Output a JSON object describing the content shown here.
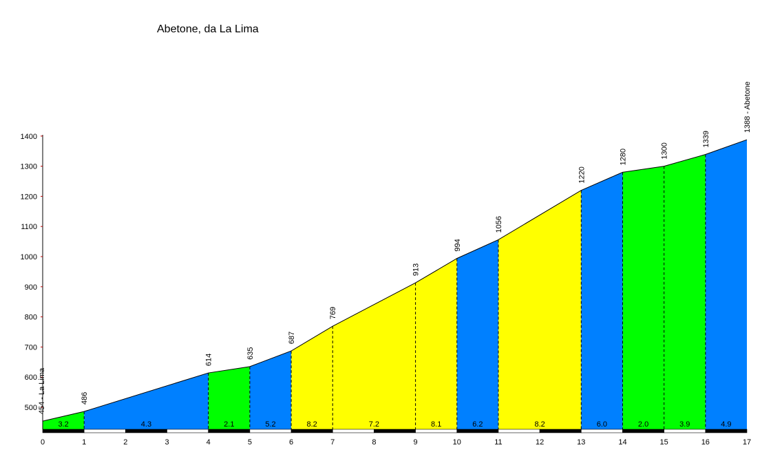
{
  "title": "Abetone, da La Lima",
  "chart_data": {
    "type": "area",
    "title": "Abetone, da La Lima",
    "xlabel": "",
    "ylabel": "",
    "xlim": [
      0,
      17
    ],
    "ylim": [
      420,
      1400
    ],
    "x_ticks": [
      "0",
      "1",
      "2",
      "3",
      "4",
      "5",
      "6",
      "7",
      "8",
      "9",
      "10",
      "11",
      "12",
      "13",
      "14",
      "15",
      "16",
      "17"
    ],
    "y_ticks": [
      "500",
      "600",
      "700",
      "800",
      "900",
      "1000",
      "1100",
      "1200",
      "1300",
      "1400"
    ],
    "grid": false,
    "points": [
      {
        "km": 0,
        "alt": 454,
        "label": "454 - La Lima"
      },
      {
        "km": 1,
        "alt": 486,
        "label": "486"
      },
      {
        "km": 4,
        "alt": 614,
        "label": "614"
      },
      {
        "km": 5,
        "alt": 635,
        "label": "635"
      },
      {
        "km": 6,
        "alt": 687,
        "label": "687"
      },
      {
        "km": 7,
        "alt": 769,
        "label": "769"
      },
      {
        "km": 9,
        "alt": 913,
        "label": "913"
      },
      {
        "km": 10,
        "alt": 994,
        "label": "994"
      },
      {
        "km": 11,
        "alt": 1056,
        "label": "1056"
      },
      {
        "km": 13,
        "alt": 1220,
        "label": "1220"
      },
      {
        "km": 14,
        "alt": 1280,
        "label": "1280"
      },
      {
        "km": 15,
        "alt": 1300,
        "label": "1300"
      },
      {
        "km": 16,
        "alt": 1339,
        "label": "1339"
      },
      {
        "km": 17,
        "alt": 1388,
        "label": "1388 - Abetone"
      }
    ],
    "segments": [
      {
        "from": 0,
        "to": 1,
        "gradient": "3.2",
        "color": "#00ff00"
      },
      {
        "from": 1,
        "to": 4,
        "gradient": "4.3",
        "color": "#0080ff"
      },
      {
        "from": 4,
        "to": 5,
        "gradient": "2.1",
        "color": "#00ff00"
      },
      {
        "from": 5,
        "to": 6,
        "gradient": "5.2",
        "color": "#0080ff"
      },
      {
        "from": 6,
        "to": 7,
        "gradient": "8.2",
        "color": "#ffff00"
      },
      {
        "from": 7,
        "to": 9,
        "gradient": "7.2",
        "color": "#ffff00"
      },
      {
        "from": 9,
        "to": 10,
        "gradient": "8.1",
        "color": "#ffff00"
      },
      {
        "from": 10,
        "to": 11,
        "gradient": "6.2",
        "color": "#0080ff"
      },
      {
        "from": 11,
        "to": 13,
        "gradient": "8.2",
        "color": "#ffff00"
      },
      {
        "from": 13,
        "to": 14,
        "gradient": "6.0",
        "color": "#0080ff"
      },
      {
        "from": 14,
        "to": 15,
        "gradient": "2.0",
        "color": "#00ff00"
      },
      {
        "from": 15,
        "to": 16,
        "gradient": "3.9",
        "color": "#00ff00"
      },
      {
        "from": 16,
        "to": 17,
        "gradient": "4.9",
        "color": "#0080ff"
      }
    ]
  }
}
